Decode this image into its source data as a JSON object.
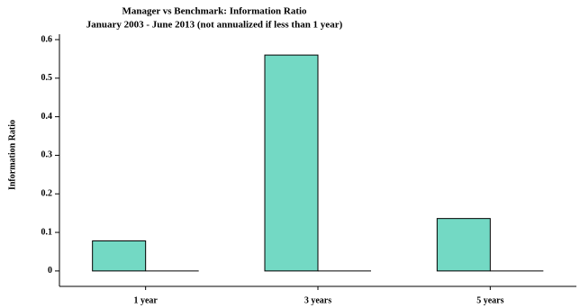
{
  "chart_data": {
    "type": "bar",
    "title": "Manager vs Benchmark: Information Ratio",
    "subtitle": "January 2003 - June 2013 (not annualized if less than 1 year)",
    "y_label": "Information Ratio",
    "categories": [
      "1 year",
      "3 years",
      "5 years"
    ],
    "series": [
      {
        "color": "#73d9c4",
        "values": [
          0.078,
          0.56,
          0.136
        ]
      },
      {
        "color": "#ffffff",
        "values": [
          0,
          0,
          0
        ]
      }
    ],
    "ylim": [
      -0.04,
      0.614
    ],
    "yticks": [
      0,
      0.1,
      0.2,
      0.3,
      0.4,
      0.5,
      0.6
    ]
  }
}
